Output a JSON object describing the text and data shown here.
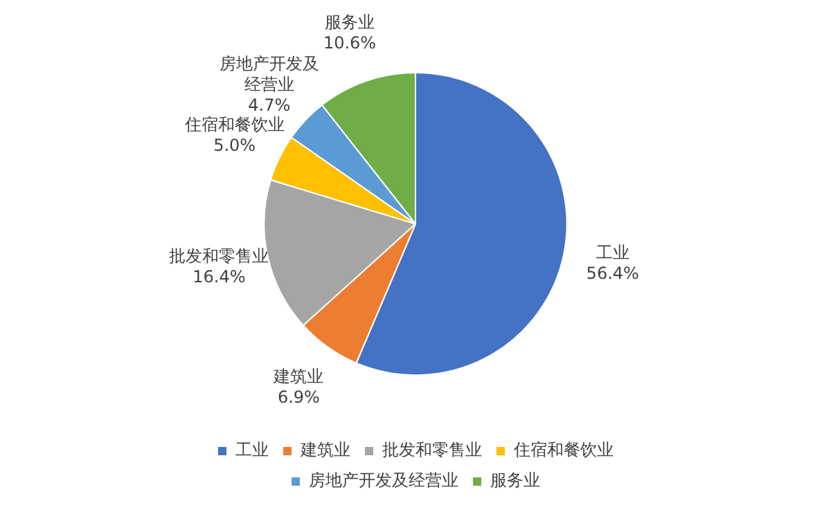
{
  "chart_data": {
    "type": "pie",
    "categories": [
      "工业",
      "建筑业",
      "批发和零售业",
      "住宿和餐饮业",
      "房地产开发及经营业",
      "服务业"
    ],
    "values": [
      56.4,
      6.9,
      16.4,
      5.0,
      4.7,
      10.6
    ],
    "colors": [
      "#4472c4",
      "#ed7d31",
      "#a5a5a5",
      "#ffc000",
      "#5b9bd5",
      "#70ad47"
    ],
    "value_labels": [
      "56.4%",
      "6.9%",
      "16.4%",
      "5.0%",
      "4.7%",
      "10.6%"
    ],
    "legend": "bottom"
  }
}
